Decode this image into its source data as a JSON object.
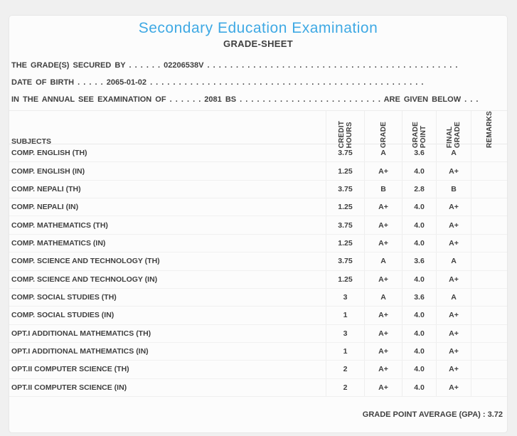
{
  "colors": {
    "accent": "#3fa9e4",
    "text": "#3f3f3f",
    "page_bg": "#f0f0f0",
    "panel_bg": "#fcfcfc"
  },
  "header": {
    "title": "Secondary Education Examination",
    "subtitle": "GRADE-SHEET"
  },
  "info_lines": [
    "THE GRADE(S) SECURED BY . . . . . . 02206538V . . . . . . . . . . . . . . . . . . . . . . . . . . . . . . . . . . . . . . . . . . . .",
    "DATE OF BIRTH . . . . . 2065-01-02 . . . . . . . . . . . . . . . . . . . . . . . . . . . . . . . . . . . . . . . . . . . . . . . .",
    "IN THE ANNUAL SEE EXAMINATION OF . . . . . . 2081 BS . . . . . . . . . . . . . . . . . . . . . . . . . ARE GIVEN BELOW . . ."
  ],
  "table": {
    "subjects_header": "SUBJECTS",
    "columns": [
      "CREDIT\nHOURS",
      "GRADE",
      "GRADE\nPOINT",
      "FINAL\nGRADE",
      "REMARKS"
    ],
    "rows": [
      {
        "subject": "COMP. ENGLISH (TH)",
        "credit_hours": "3.75",
        "grade": "A",
        "grade_point": "3.6",
        "final_grade": "A",
        "remarks": ""
      },
      {
        "subject": "COMP. ENGLISH (IN)",
        "credit_hours": "1.25",
        "grade": "A+",
        "grade_point": "4.0",
        "final_grade": "A+",
        "remarks": ""
      },
      {
        "subject": "COMP. NEPALI (TH)",
        "credit_hours": "3.75",
        "grade": "B",
        "grade_point": "2.8",
        "final_grade": "B",
        "remarks": ""
      },
      {
        "subject": "COMP. NEPALI (IN)",
        "credit_hours": "1.25",
        "grade": "A+",
        "grade_point": "4.0",
        "final_grade": "A+",
        "remarks": ""
      },
      {
        "subject": "COMP. MATHEMATICS (TH)",
        "credit_hours": "3.75",
        "grade": "A+",
        "grade_point": "4.0",
        "final_grade": "A+",
        "remarks": ""
      },
      {
        "subject": "COMP. MATHEMATICS (IN)",
        "credit_hours": "1.25",
        "grade": "A+",
        "grade_point": "4.0",
        "final_grade": "A+",
        "remarks": ""
      },
      {
        "subject": "COMP. SCIENCE AND TECHNOLOGY (TH)",
        "credit_hours": "3.75",
        "grade": "A",
        "grade_point": "3.6",
        "final_grade": "A",
        "remarks": ""
      },
      {
        "subject": "COMP. SCIENCE AND TECHNOLOGY (IN)",
        "credit_hours": "1.25",
        "grade": "A+",
        "grade_point": "4.0",
        "final_grade": "A+",
        "remarks": ""
      },
      {
        "subject": "COMP. SOCIAL STUDIES (TH)",
        "credit_hours": "3",
        "grade": "A",
        "grade_point": "3.6",
        "final_grade": "A",
        "remarks": ""
      },
      {
        "subject": "COMP. SOCIAL STUDIES (IN)",
        "credit_hours": "1",
        "grade": "A+",
        "grade_point": "4.0",
        "final_grade": "A+",
        "remarks": ""
      },
      {
        "subject": "OPT.I ADDITIONAL MATHEMATICS (TH)",
        "credit_hours": "3",
        "grade": "A+",
        "grade_point": "4.0",
        "final_grade": "A+",
        "remarks": ""
      },
      {
        "subject": "OPT.I ADDITIONAL MATHEMATICS (IN)",
        "credit_hours": "1",
        "grade": "A+",
        "grade_point": "4.0",
        "final_grade": "A+",
        "remarks": ""
      },
      {
        "subject": "OPT.II COMPUTER SCIENCE (TH)",
        "credit_hours": "2",
        "grade": "A+",
        "grade_point": "4.0",
        "final_grade": "A+",
        "remarks": ""
      },
      {
        "subject": "OPT.II COMPUTER SCIENCE (IN)",
        "credit_hours": "2",
        "grade": "A+",
        "grade_point": "4.0",
        "final_grade": "A+",
        "remarks": ""
      }
    ]
  },
  "footer": {
    "gpa_text": "GRADE POINT AVERAGE (GPA) : 3.72"
  }
}
